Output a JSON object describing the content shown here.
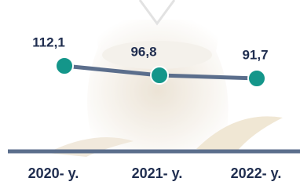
{
  "chart_data": {
    "type": "line",
    "categories": [
      "2020- y.",
      "2021- y.",
      "2022- y."
    ],
    "series": [
      {
        "color": "#5b6e8c",
        "values": [
          112.1,
          96.8,
          91.7
        ],
        "value_labels": [
          "112,1",
          "96,8",
          "91,7"
        ]
      }
    ],
    "marker_color": "#14968a"
  }
}
